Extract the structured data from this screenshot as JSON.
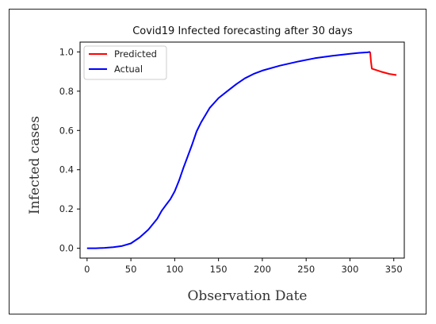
{
  "chart_data": {
    "type": "line",
    "title": "Covid19 Infected forecasting after 30 days",
    "xlabel": "Observation Date",
    "ylabel": "Infected cases",
    "xlim": [
      -8,
      362
    ],
    "ylim": [
      -0.05,
      1.05
    ],
    "xticks": [
      0,
      50,
      100,
      150,
      200,
      250,
      300,
      350
    ],
    "xtick_labels": [
      "0",
      "50",
      "100",
      "150",
      "200",
      "250",
      "300",
      "350"
    ],
    "yticks": [
      0.0,
      0.2,
      0.4,
      0.6,
      0.8,
      1.0
    ],
    "ytick_labels": [
      "0.0",
      "0.2",
      "0.4",
      "0.6",
      "0.8",
      "1.0"
    ],
    "grid": false,
    "legend_position": "top-left",
    "series": [
      {
        "name": "Predicted",
        "color": "#ff0000",
        "x": [
          323,
          324,
          325,
          335,
          345,
          353
        ],
        "y": [
          1.0,
          0.95,
          0.915,
          0.9,
          0.888,
          0.882
        ]
      },
      {
        "name": "Actual",
        "color": "#0000ff",
        "x": [
          0,
          10,
          20,
          30,
          40,
          50,
          60,
          70,
          80,
          85,
          90,
          95,
          100,
          105,
          110,
          115,
          120,
          125,
          130,
          140,
          150,
          160,
          170,
          180,
          190,
          200,
          220,
          240,
          260,
          280,
          300,
          310,
          320,
          323
        ],
        "y": [
          0.0,
          0.0,
          0.002,
          0.006,
          0.012,
          0.025,
          0.055,
          0.095,
          0.15,
          0.19,
          0.22,
          0.25,
          0.29,
          0.345,
          0.41,
          0.47,
          0.53,
          0.595,
          0.64,
          0.715,
          0.765,
          0.8,
          0.835,
          0.865,
          0.888,
          0.905,
          0.93,
          0.95,
          0.968,
          0.98,
          0.99,
          0.995,
          0.998,
          1.0
        ]
      }
    ]
  }
}
